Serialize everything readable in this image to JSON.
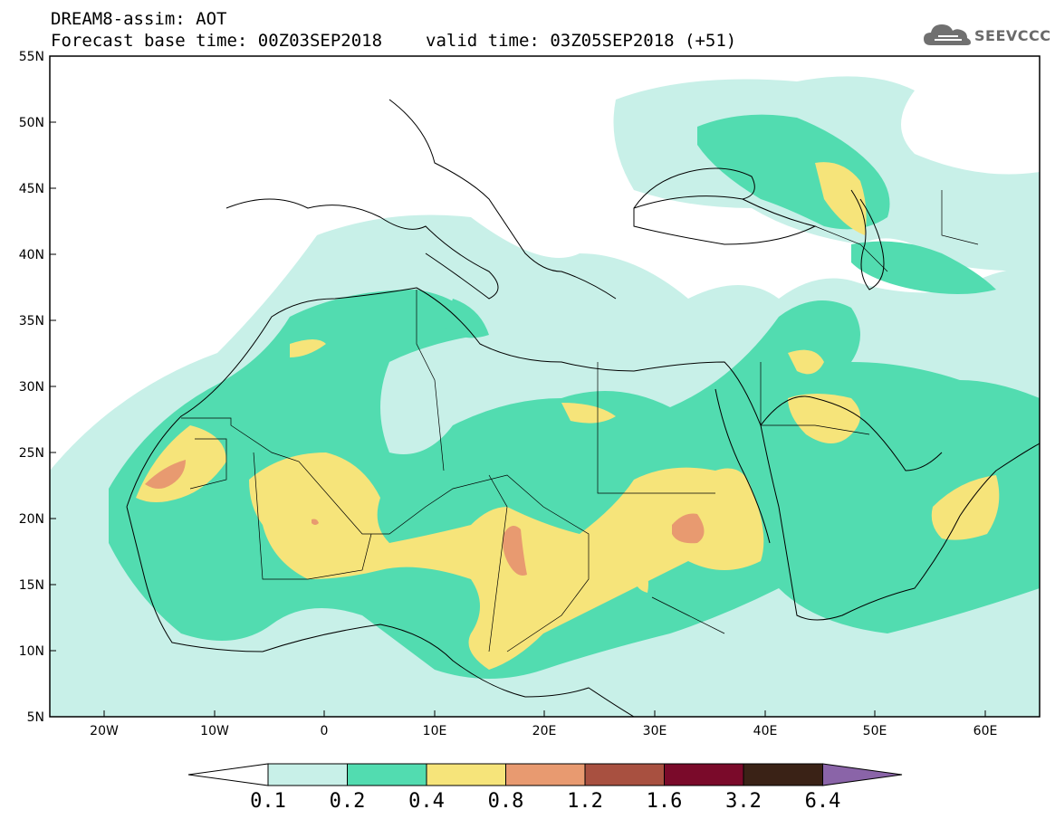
{
  "header": {
    "title": "DREAM8-assim: AOT",
    "base_time": "Forecast base time: 00Z03SEP2018",
    "valid_time": "valid time: 03Z05SEP2018 (+51)"
  },
  "logo": {
    "text": "SEEVCCC",
    "icon": "cloud-icon"
  },
  "map": {
    "lon_range": [
      -25,
      65
    ],
    "lat_range": [
      5,
      55
    ],
    "x_ticks": [
      "20W",
      "10W",
      "0",
      "10E",
      "20E",
      "30E",
      "40E",
      "50E",
      "60E"
    ],
    "y_ticks": [
      "5N",
      "10N",
      "15N",
      "20N",
      "25N",
      "30N",
      "35N",
      "40N",
      "45N",
      "50N",
      "55N"
    ]
  },
  "colorbar": {
    "labels": [
      "0.1",
      "0.2",
      "0.4",
      "0.8",
      "1.2",
      "1.6",
      "3.2",
      "6.4"
    ],
    "colors": [
      "#ffffff",
      "#c8f0e8",
      "#52dcb0",
      "#f6e47a",
      "#e89a70",
      "#a85040",
      "#7a0a2a",
      "#3a2216",
      "#8a64a8"
    ]
  },
  "colors": {
    "level_0_1": "#c8f0e8",
    "level_0_2": "#52dcb0",
    "level_0_4": "#f6e47a",
    "level_0_8": "#e89a70",
    "border": "#000000"
  }
}
